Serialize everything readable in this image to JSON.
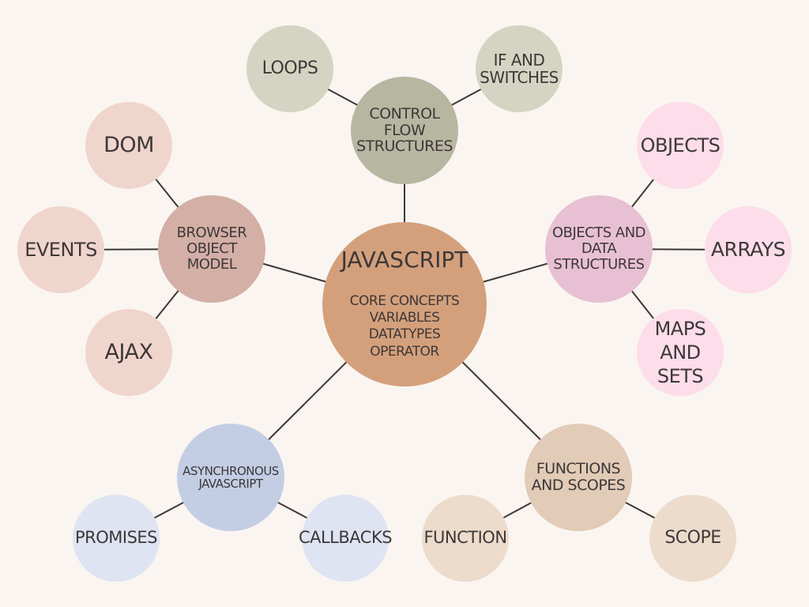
{
  "colors": {
    "background": "#faf5f0",
    "edge": "#3d3838",
    "text": "#3d3838"
  },
  "nodes": {
    "javascript": {
      "title": "JAVASCRIPT",
      "lines": [
        "CORE CONCEPTS",
        "VARIABLES",
        "DATATYPES",
        "OPERATOR"
      ]
    },
    "control_flow": {
      "label": "CONTROL FLOW STRUCTURES"
    },
    "loops": {
      "label": "LOOPS"
    },
    "if_switches": {
      "label": "IF AND SWITCHES"
    },
    "bom": {
      "label": "BROWSER OBJECT MODEL"
    },
    "dom": {
      "label": "DOM"
    },
    "events": {
      "label": "EVENTS"
    },
    "ajax": {
      "label": "AJAX"
    },
    "objects_ds": {
      "label": "OBJECTS AND DATA STRUCTURES"
    },
    "objects": {
      "label": "OBJECTS"
    },
    "arrays": {
      "label": "ARRAYS"
    },
    "maps_sets": {
      "label": "MAPS AND SETS"
    },
    "async": {
      "label": "ASYNCHRONOUS JAVASCRIPT"
    },
    "promises": {
      "label": "PROMISES"
    },
    "callbacks": {
      "label": "CALLBACKS"
    },
    "functions_scopes": {
      "label": "FUNCTIONS AND SCOPES"
    },
    "function": {
      "label": "FUNCTION"
    },
    "scope": {
      "label": "SCOPE"
    }
  },
  "edges": [
    [
      "javascript",
      "control_flow"
    ],
    [
      "javascript",
      "bom"
    ],
    [
      "javascript",
      "objects_ds"
    ],
    [
      "javascript",
      "async"
    ],
    [
      "javascript",
      "functions_scopes"
    ],
    [
      "control_flow",
      "loops"
    ],
    [
      "control_flow",
      "if_switches"
    ],
    [
      "bom",
      "dom"
    ],
    [
      "bom",
      "events"
    ],
    [
      "bom",
      "ajax"
    ],
    [
      "objects_ds",
      "objects"
    ],
    [
      "objects_ds",
      "arrays"
    ],
    [
      "objects_ds",
      "maps_sets"
    ],
    [
      "async",
      "promises"
    ],
    [
      "async",
      "callbacks"
    ],
    [
      "functions_scopes",
      "function"
    ],
    [
      "functions_scopes",
      "scope"
    ]
  ]
}
